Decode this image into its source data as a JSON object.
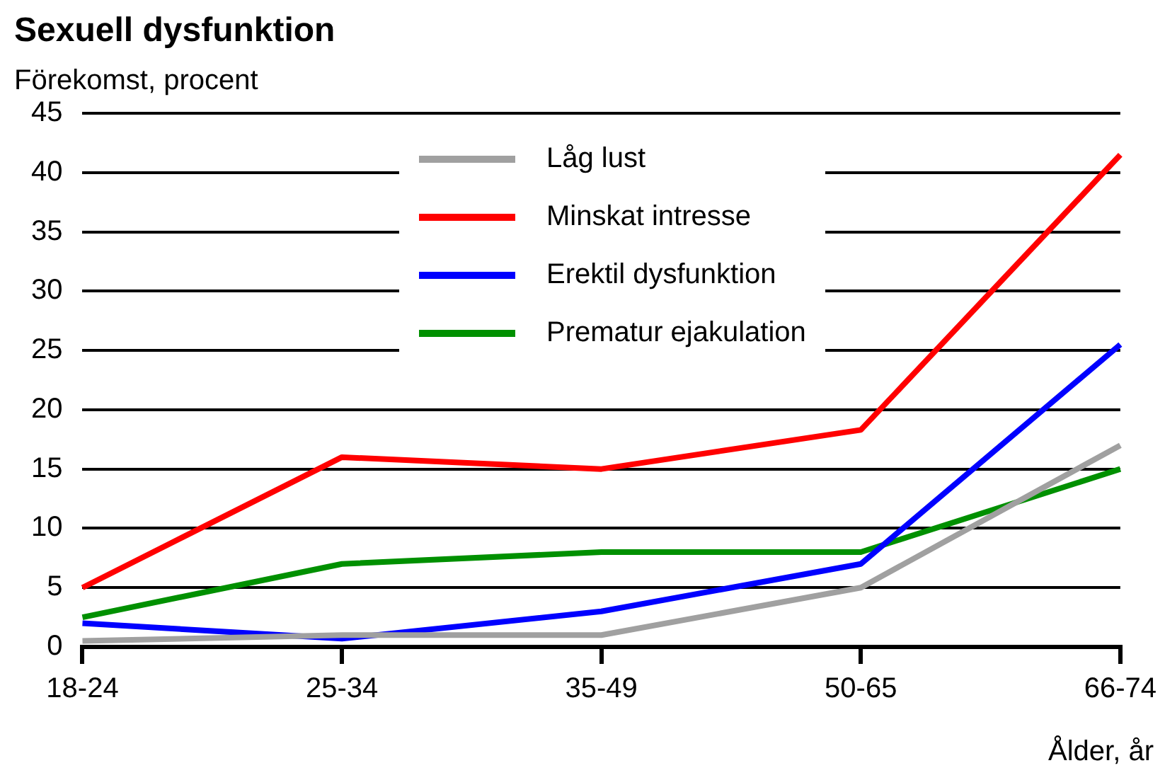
{
  "chart_data": {
    "type": "line",
    "title": "Sexuell dysfunktion",
    "ylabel": "Förekomst, procent",
    "xlabel": "Ålder, år",
    "categories": [
      "18-24",
      "25-34",
      "35-49",
      "50-65",
      "66-74"
    ],
    "series": [
      {
        "name": "Låg lust",
        "color": "#a0a0a0",
        "values": [
          0.5,
          1,
          1,
          5,
          17
        ]
      },
      {
        "name": "Minskat intresse",
        "color": "#ff0000",
        "values": [
          5,
          16,
          15,
          18.3,
          41.5
        ]
      },
      {
        "name": "Erektil dysfunktion",
        "color": "#0000ff",
        "values": [
          2,
          0.7,
          3,
          7,
          25.5
        ]
      },
      {
        "name": "Prematur ejakulation",
        "color": "#009000",
        "values": [
          2.5,
          7,
          8,
          8,
          15
        ]
      }
    ],
    "ylim": [
      0,
      45
    ],
    "yticks": [
      0,
      5,
      10,
      15,
      20,
      25,
      30,
      35,
      40,
      45
    ],
    "grid": "y",
    "legend": "top",
    "marker": "none",
    "line_style": "solid"
  }
}
